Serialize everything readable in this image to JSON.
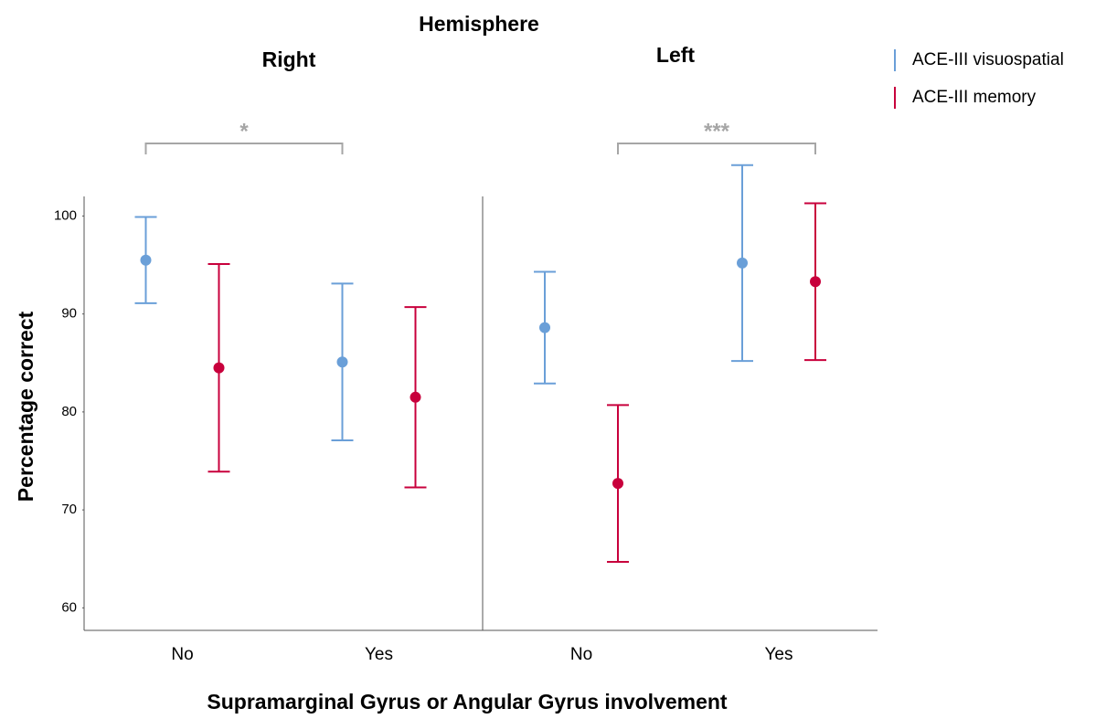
{
  "chart_data": {
    "type": "errorbar",
    "title": "Hemisphere",
    "xlabel": "Supramarginal Gyrus or Angular Gyrus involvement",
    "ylabel": "Percentage correct",
    "panels": [
      {
        "title": "Right",
        "annotation": "*"
      },
      {
        "title": "Left",
        "annotation": "***"
      }
    ],
    "categories": [
      "No",
      "Yes",
      "No",
      "Yes"
    ],
    "series": [
      {
        "name": "ACE-III visuospatial",
        "color": "#6a9fd8",
        "values": [
          95.5,
          85.1,
          88.6,
          95.2
        ],
        "errors": [
          4.4,
          8.0,
          5.7,
          10.0
        ]
      },
      {
        "name": "ACE-III memory",
        "color": "#c8003c",
        "values": [
          84.5,
          81.5,
          72.7,
          93.3
        ],
        "errors": [
          10.6,
          9.2,
          8.0,
          8.0
        ]
      }
    ],
    "ylim": [
      57.7,
      102
    ],
    "yticks": [
      60,
      70,
      80,
      90,
      100
    ]
  }
}
